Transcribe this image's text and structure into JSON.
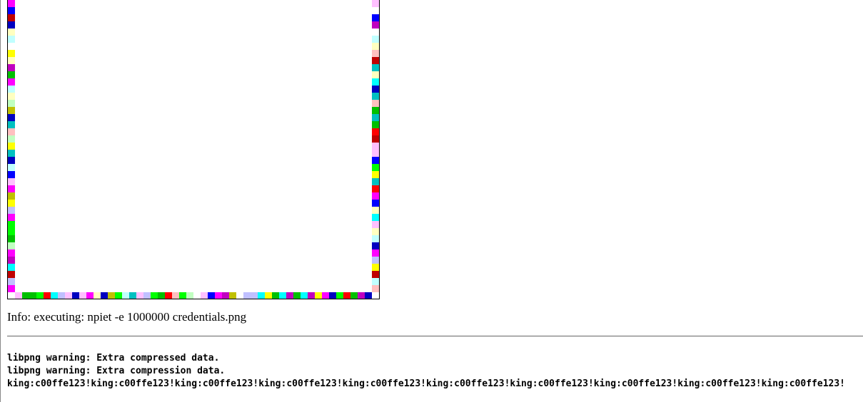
{
  "info": "Info: executing: npiet -e 1000000 credentials.png",
  "output": [
    "libpng warning: Extra compressed data.",
    "libpng warning: Extra compression data.",
    "king:c00ffe123!king:c00ffe123!king:c00ffe123!king:c00ffe123!king:c00ffe123!king:c00ffe123!king:c00ffe123!king:c00ffe123!king:c00ffe123!king:c00ffe123!"
  ]
}
